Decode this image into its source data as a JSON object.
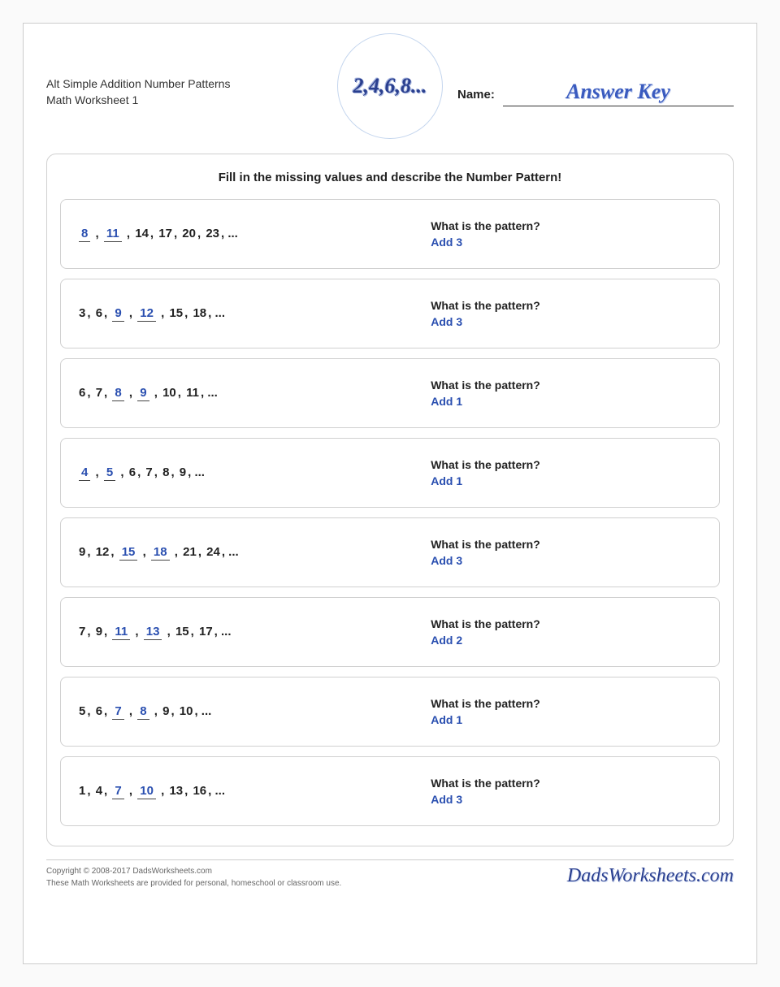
{
  "header": {
    "title_line1": "Alt Simple Addition Number Patterns",
    "title_line2": "Math Worksheet 1",
    "logo_text": "2,4,6,8...",
    "name_label": "Name:",
    "answer_key": "Answer Key"
  },
  "instructions": "Fill in the missing values and describe the Number Pattern!",
  "pattern_question": "What is the pattern?",
  "problems": [
    {
      "items": [
        {
          "v": "8",
          "f": true
        },
        {
          "v": "11",
          "f": true
        },
        {
          "v": "14",
          "f": false
        },
        {
          "v": "17",
          "f": false
        },
        {
          "v": "20",
          "f": false
        },
        {
          "v": "23",
          "f": false
        }
      ],
      "answer": "Add 3"
    },
    {
      "items": [
        {
          "v": "3",
          "f": false
        },
        {
          "v": "6",
          "f": false
        },
        {
          "v": "9",
          "f": true
        },
        {
          "v": "12",
          "f": true
        },
        {
          "v": "15",
          "f": false
        },
        {
          "v": "18",
          "f": false
        }
      ],
      "answer": "Add 3"
    },
    {
      "items": [
        {
          "v": "6",
          "f": false
        },
        {
          "v": "7",
          "f": false
        },
        {
          "v": "8",
          "f": true
        },
        {
          "v": "9",
          "f": true
        },
        {
          "v": "10",
          "f": false
        },
        {
          "v": "11",
          "f": false
        }
      ],
      "answer": "Add 1"
    },
    {
      "items": [
        {
          "v": "4",
          "f": true
        },
        {
          "v": "5",
          "f": true
        },
        {
          "v": "6",
          "f": false
        },
        {
          "v": "7",
          "f": false
        },
        {
          "v": "8",
          "f": false
        },
        {
          "v": "9",
          "f": false
        }
      ],
      "answer": "Add 1"
    },
    {
      "items": [
        {
          "v": "9",
          "f": false
        },
        {
          "v": "12",
          "f": false
        },
        {
          "v": "15",
          "f": true
        },
        {
          "v": "18",
          "f": true
        },
        {
          "v": "21",
          "f": false
        },
        {
          "v": "24",
          "f": false
        }
      ],
      "answer": "Add 3"
    },
    {
      "items": [
        {
          "v": "7",
          "f": false
        },
        {
          "v": "9",
          "f": false
        },
        {
          "v": "11",
          "f": true
        },
        {
          "v": "13",
          "f": true
        },
        {
          "v": "15",
          "f": false
        },
        {
          "v": "17",
          "f": false
        }
      ],
      "answer": "Add 2"
    },
    {
      "items": [
        {
          "v": "5",
          "f": false
        },
        {
          "v": "6",
          "f": false
        },
        {
          "v": "7",
          "f": true
        },
        {
          "v": "8",
          "f": true
        },
        {
          "v": "9",
          "f": false
        },
        {
          "v": "10",
          "f": false
        }
      ],
      "answer": "Add 1"
    },
    {
      "items": [
        {
          "v": "1",
          "f": false
        },
        {
          "v": "4",
          "f": false
        },
        {
          "v": "7",
          "f": true
        },
        {
          "v": "10",
          "f": true
        },
        {
          "v": "13",
          "f": false
        },
        {
          "v": "16",
          "f": false
        }
      ],
      "answer": "Add 3"
    }
  ],
  "footer": {
    "copyright": "Copyright © 2008-2017 DadsWorksheets.com",
    "usage": "These Math Worksheets are provided for personal, homeschool or classroom use.",
    "brand": "DadsWorksheets.com"
  },
  "colors": {
    "answer_blue": "#2a4fb0",
    "text_dark": "#222222",
    "border_gray": "#d0d0d0",
    "logo_blue": "#2a3f8f"
  }
}
